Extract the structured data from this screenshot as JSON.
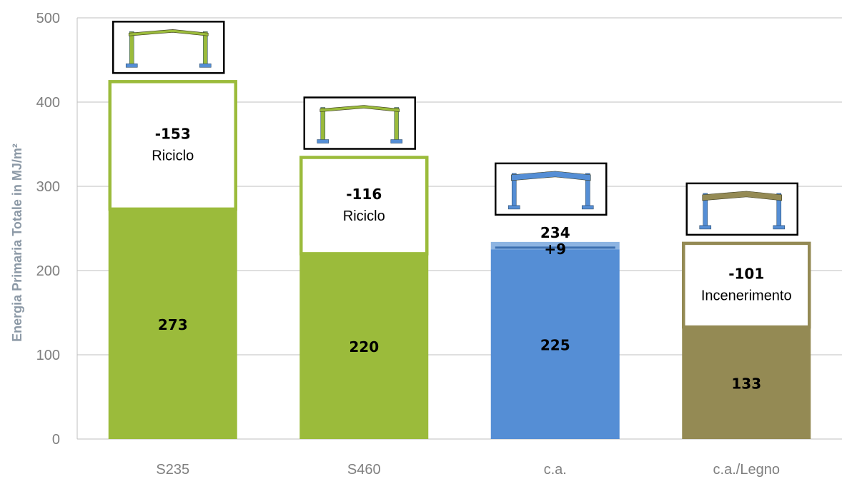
{
  "chart_data": {
    "type": "bar",
    "ylabel": "Energia Primaria Totale in MJ/m²",
    "ylim": [
      0,
      500
    ],
    "yticks": [
      "0",
      "100",
      "200",
      "300",
      "400",
      "500"
    ],
    "grid": true,
    "categories": [
      "S235",
      "S460",
      "c.a.",
      "c.a./Legno"
    ],
    "series": [
      {
        "values": [
          273,
          220,
          225,
          133
        ],
        "labels": [
          "273",
          "220",
          "225",
          "133"
        ],
        "colors": [
          "#9bbb3b",
          "#9bbb3b",
          "#558ed5",
          "#948a54"
        ]
      }
    ],
    "end_of_life": [
      {
        "value": 153,
        "label": "-153",
        "note": "Riciclo",
        "color": "#9bbb3b"
      },
      {
        "value": 116,
        "label": "-116",
        "note": "Riciclo",
        "color": "#9bbb3b"
      },
      {
        "value": 9,
        "label": "+9",
        "total_label": "234",
        "note": "",
        "color": "#8db4e2"
      },
      {
        "value": 101,
        "label": "-101",
        "note": "Incenerimento",
        "color": "#948a54"
      }
    ],
    "icons": [
      {
        "frame": "steel-portal-frame",
        "color": "#9bbb3b"
      },
      {
        "frame": "steel-portal-frame",
        "color": "#9bbb3b"
      },
      {
        "frame": "concrete-portal-frame",
        "color": "#558ed5"
      },
      {
        "frame": "concrete-timber-portal-frame",
        "color": "#948a54"
      }
    ],
    "colors": {
      "grid": "#bfbfbf",
      "axis": "#7f7f7f"
    }
  }
}
